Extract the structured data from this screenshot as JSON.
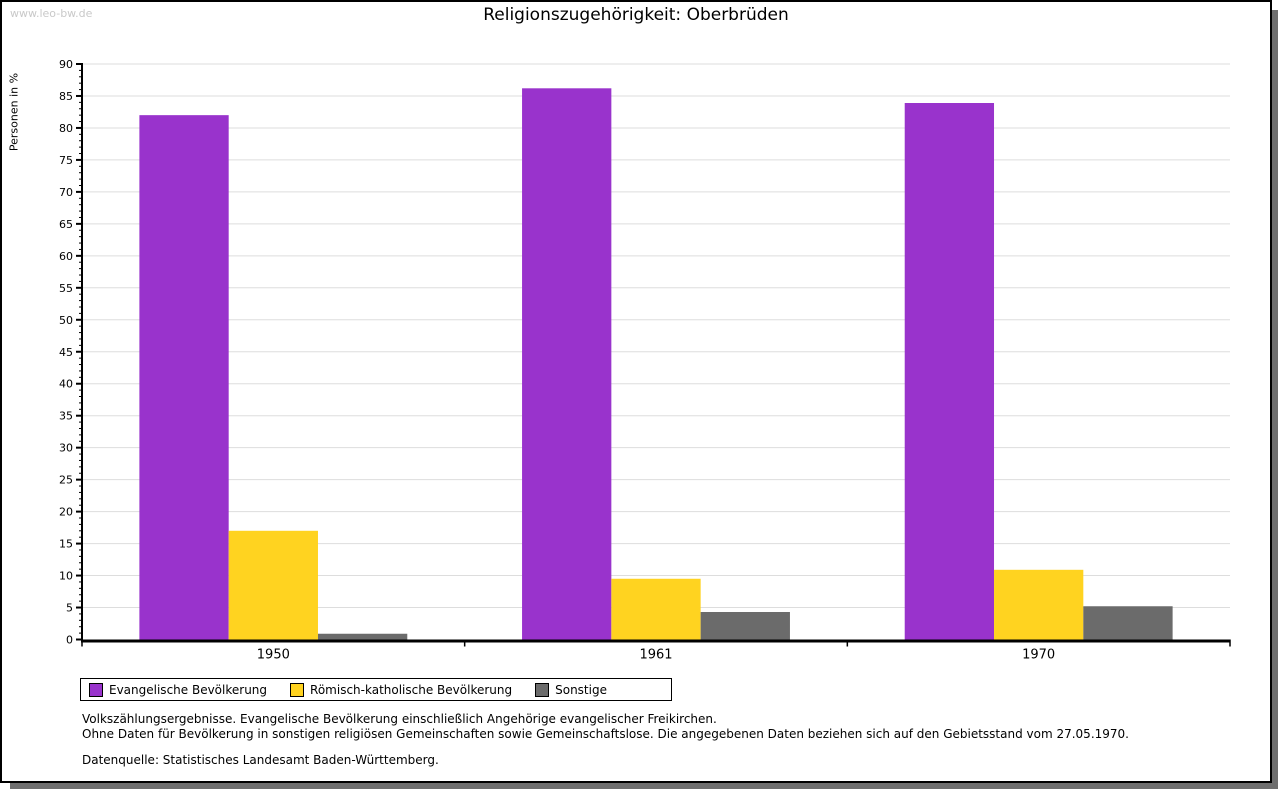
{
  "watermark": "www.leo-bw.de",
  "title": "Religionszugehörigkeit: Oberbrüden",
  "chart_data": {
    "type": "bar",
    "title": "Religionszugehörigkeit: Oberbrüden",
    "categories": [
      "1950",
      "1961",
      "1970"
    ],
    "series": [
      {
        "name": "Evangelische Bevölkerung",
        "color": "#9933CC",
        "values": [
          82.0,
          86.2,
          83.9
        ]
      },
      {
        "name": "Römisch-katholische Bevölkerung",
        "color": "#FFD320",
        "values": [
          17.0,
          9.5,
          10.9
        ]
      },
      {
        "name": "Sonstige",
        "color": "#6B6B6B",
        "values": [
          0.9,
          4.3,
          5.2
        ]
      }
    ],
    "xlabel": "",
    "ylabel": "Personen in %",
    "ylim": [
      0,
      90
    ],
    "ytick_major": 5,
    "ytick_minor": 1,
    "grid": true,
    "gridline_color": "#dddddd",
    "legend_position": "bottom"
  },
  "footnotes": {
    "line1": "Volkszählungsergebnisse. Evangelische Bevölkerung einschließlich Angehörige evangelischer Freikirchen.",
    "line2": "Ohne Daten für Bevölkerung in sonstigen religiösen Gemeinschaften sowie Gemeinschaftslose. Die angegebenen Daten beziehen sich auf den Gebietsstand vom 27.05.1970.",
    "line3": "Datenquelle: Statistisches Landesamt Baden-Württemberg."
  }
}
